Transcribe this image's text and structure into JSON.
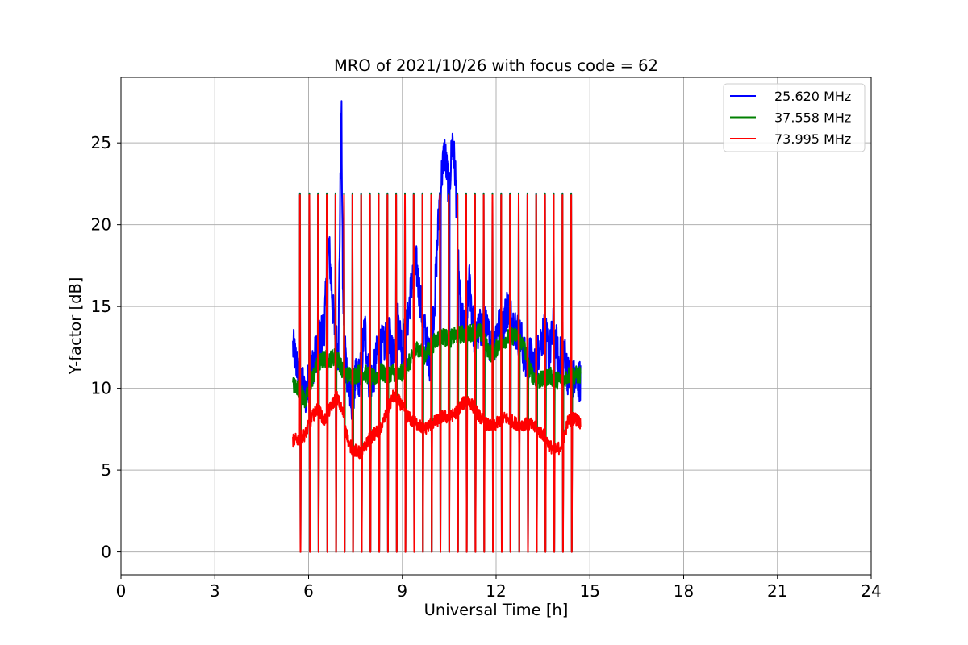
{
  "chart_data": {
    "type": "line",
    "title": "MRO of 2021/10/26 with focus code = 62",
    "xlabel": "Universal Time [h]",
    "ylabel": "Y-factor [dB]",
    "xlim": [
      0,
      24
    ],
    "ylim": [
      -1.4,
      29
    ],
    "x_ticks": [
      0,
      3,
      6,
      9,
      12,
      15,
      18,
      21,
      24
    ],
    "y_ticks": [
      0,
      5,
      10,
      15,
      20,
      25
    ],
    "grid": true,
    "legend_position": "top-right",
    "calibration_pulses": {
      "x": [
        5.45,
        5.72,
        6.02,
        6.3,
        6.58,
        6.86,
        7.13,
        7.4,
        7.68,
        7.96,
        8.24,
        8.52,
        8.8,
        9.08,
        9.36,
        9.64,
        9.92,
        10.2,
        10.48,
        10.76,
        11.04,
        11.32,
        11.6,
        11.88,
        12.16,
        12.44,
        12.72,
        13.0,
        13.28,
        13.56,
        13.84,
        14.12,
        14.4
      ],
      "peak_value": 21.8,
      "floor_value": 0.0
    },
    "series": [
      {
        "name": "25.620 MHz",
        "color": "#0000ff",
        "x": [
          5.5,
          5.7,
          5.9,
          6.1,
          6.3,
          6.5,
          6.65,
          6.8,
          6.95,
          7.05,
          7.1,
          7.2,
          7.35,
          7.5,
          7.65,
          7.8,
          7.95,
          8.1,
          8.25,
          8.4,
          8.55,
          8.7,
          8.85,
          9.0,
          9.15,
          9.3,
          9.45,
          9.6,
          9.75,
          9.9,
          10.05,
          10.2,
          10.35,
          10.5,
          10.6,
          10.7,
          10.85,
          11.0,
          11.15,
          11.3,
          11.45,
          11.6,
          11.75,
          11.9,
          12.05,
          12.2,
          12.35,
          12.5,
          12.65,
          12.8,
          12.95,
          13.1,
          13.25,
          13.4,
          13.55,
          13.7,
          13.85,
          14.0,
          14.15,
          14.3,
          14.5,
          14.7
        ],
        "values": [
          12.5,
          10.8,
          9.5,
          11.2,
          12.6,
          13.8,
          18.8,
          14.2,
          12.0,
          27.5,
          15.5,
          11.5,
          9.0,
          10.5,
          10.8,
          13.8,
          10.2,
          11.0,
          12.8,
          12.5,
          13.5,
          12.0,
          14.2,
          12.5,
          13.8,
          16.5,
          17.5,
          15.0,
          13.0,
          11.5,
          16.0,
          22.0,
          24.5,
          22.0,
          25.3,
          23.0,
          14.5,
          13.5,
          16.5,
          13.2,
          13.5,
          14.0,
          13.2,
          12.5,
          13.8,
          13.5,
          15.0,
          14.2,
          13.5,
          13.0,
          11.5,
          12.0,
          11.2,
          12.8,
          13.5,
          12.0,
          14.0,
          11.5,
          12.5,
          10.8,
          10.5,
          10.5
        ]
      },
      {
        "name": "37.558 MHz",
        "color": "#008000",
        "x": [
          5.5,
          5.7,
          5.9,
          6.1,
          6.3,
          6.5,
          6.7,
          6.9,
          7.1,
          7.3,
          7.5,
          7.7,
          7.9,
          8.1,
          8.3,
          8.5,
          8.7,
          8.9,
          9.1,
          9.3,
          9.5,
          9.7,
          9.9,
          10.1,
          10.3,
          10.5,
          10.7,
          10.9,
          11.1,
          11.3,
          11.5,
          11.7,
          11.9,
          12.1,
          12.3,
          12.5,
          12.7,
          12.9,
          13.1,
          13.3,
          13.5,
          13.7,
          13.9,
          14.1,
          14.3,
          14.5,
          14.7
        ],
        "values": [
          10.2,
          10.0,
          9.2,
          10.5,
          11.5,
          11.8,
          11.8,
          12.0,
          11.0,
          10.8,
          10.8,
          11.0,
          10.8,
          10.6,
          11.0,
          10.8,
          11.0,
          10.8,
          11.2,
          11.8,
          12.5,
          12.0,
          12.5,
          13.0,
          13.2,
          13.0,
          13.2,
          13.3,
          13.3,
          13.5,
          13.4,
          12.5,
          12.0,
          12.8,
          13.0,
          13.2,
          13.2,
          12.5,
          11.0,
          10.5,
          10.5,
          10.8,
          10.5,
          10.5,
          10.8,
          10.8,
          10.8
        ]
      },
      {
        "name": "73.995 MHz",
        "color": "#ff0000",
        "x": [
          5.5,
          5.7,
          5.9,
          6.1,
          6.3,
          6.5,
          6.7,
          6.9,
          7.1,
          7.3,
          7.5,
          7.7,
          7.9,
          8.1,
          8.3,
          8.5,
          8.7,
          8.9,
          9.1,
          9.3,
          9.5,
          9.7,
          9.9,
          10.1,
          10.3,
          10.5,
          10.7,
          10.9,
          11.1,
          11.3,
          11.5,
          11.7,
          11.9,
          12.1,
          12.3,
          12.5,
          12.7,
          12.9,
          13.1,
          13.3,
          13.5,
          13.7,
          13.9,
          14.1,
          14.3,
          14.5,
          14.7
        ],
        "values": [
          6.8,
          6.9,
          7.2,
          8.2,
          8.8,
          8.0,
          8.8,
          9.5,
          8.5,
          6.5,
          6.2,
          6.0,
          6.8,
          7.2,
          7.5,
          8.5,
          9.5,
          9.2,
          8.5,
          8.0,
          7.8,
          7.5,
          7.8,
          8.0,
          8.3,
          8.2,
          8.5,
          9.0,
          9.3,
          8.8,
          8.2,
          7.8,
          7.6,
          8.0,
          8.2,
          8.0,
          7.8,
          7.8,
          7.8,
          7.5,
          7.2,
          6.5,
          6.2,
          6.5,
          8.0,
          8.2,
          7.9
        ]
      }
    ]
  }
}
